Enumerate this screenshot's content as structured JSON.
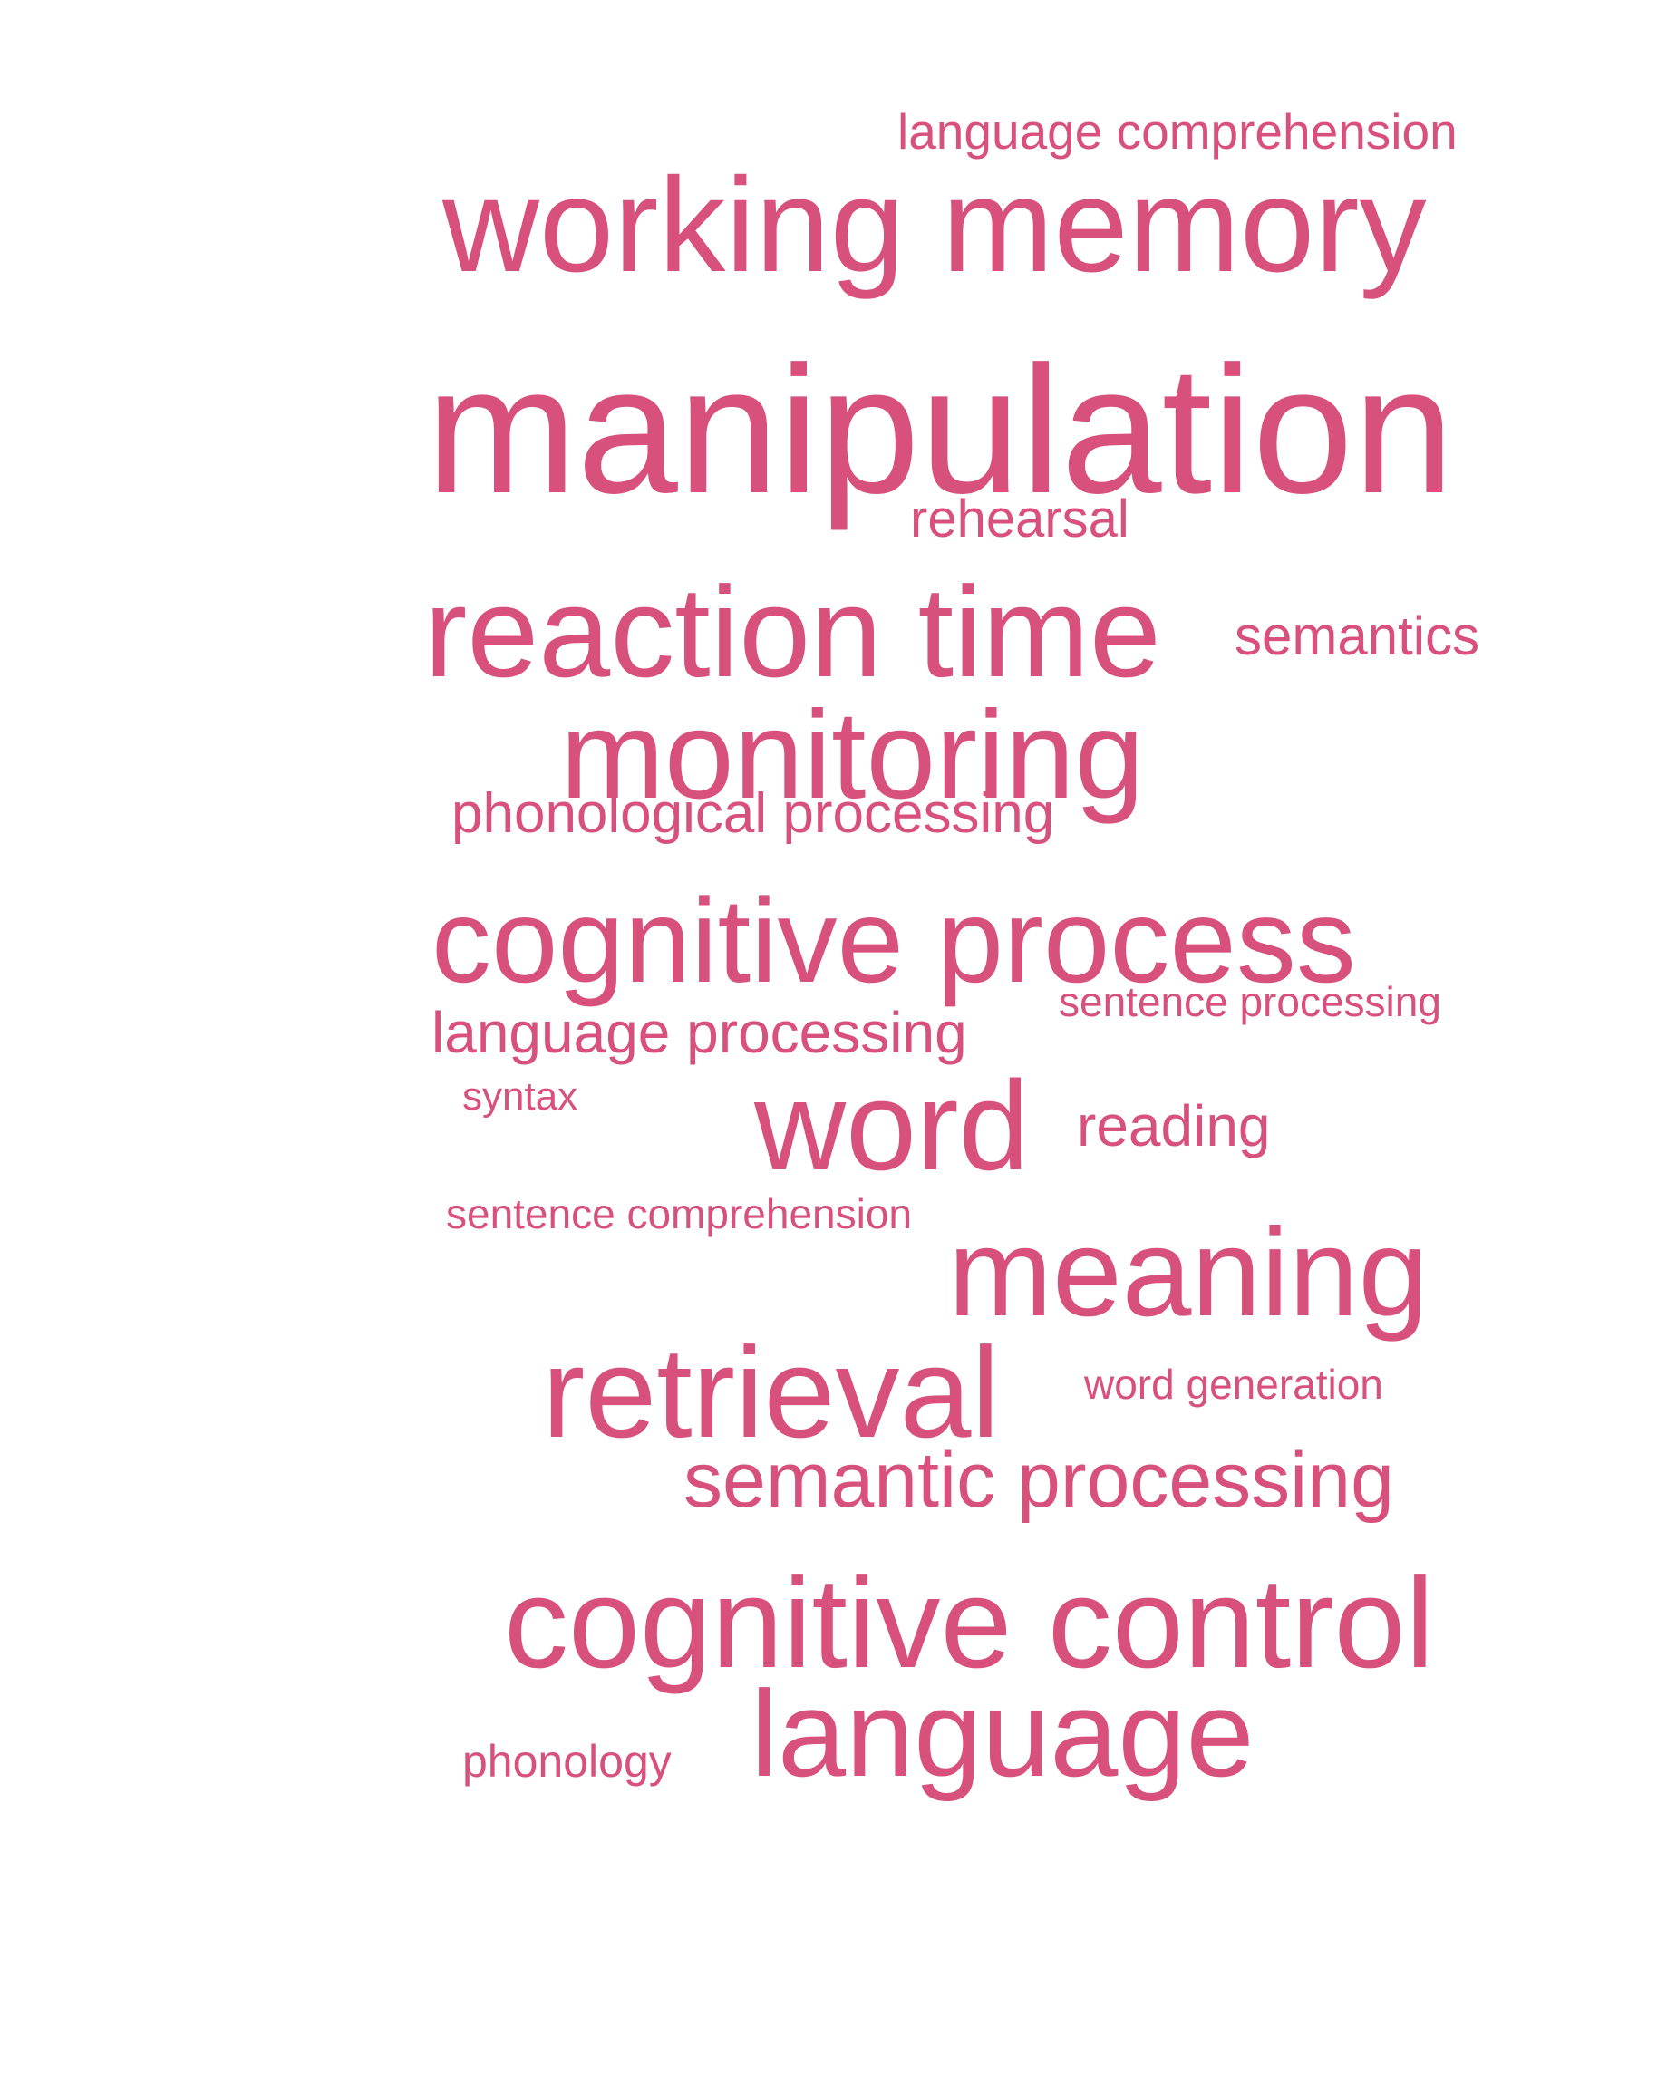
{
  "colors": {
    "word_color": "#d8507c",
    "background": "#ffffff"
  },
  "words": [
    {
      "key": "language-comprehension",
      "text": "language comprehension"
    },
    {
      "key": "working-memory",
      "text": "working memory"
    },
    {
      "key": "manipulation",
      "text": "manipulation"
    },
    {
      "key": "rehearsal",
      "text": "rehearsal"
    },
    {
      "key": "reaction-time",
      "text": "reaction time"
    },
    {
      "key": "semantics",
      "text": "semantics"
    },
    {
      "key": "monitoring",
      "text": "monitoring"
    },
    {
      "key": "phonological-processing",
      "text": "phonological processing"
    },
    {
      "key": "cognitive-process",
      "text": "cognitive process"
    },
    {
      "key": "sentence-processing",
      "text": "sentence processing"
    },
    {
      "key": "language-processing",
      "text": "language processing"
    },
    {
      "key": "syntax",
      "text": "syntax"
    },
    {
      "key": "word",
      "text": "word"
    },
    {
      "key": "reading",
      "text": "reading"
    },
    {
      "key": "sentence-comprehension",
      "text": "sentence comprehension"
    },
    {
      "key": "meaning",
      "text": "meaning"
    },
    {
      "key": "retrieval",
      "text": "retrieval"
    },
    {
      "key": "word-generation",
      "text": "word generation"
    },
    {
      "key": "semantic-processing",
      "text": "semantic processing"
    },
    {
      "key": "cognitive-control",
      "text": "cognitive control"
    },
    {
      "key": "language",
      "text": "language"
    },
    {
      "key": "phonology",
      "text": "phonology"
    }
  ]
}
